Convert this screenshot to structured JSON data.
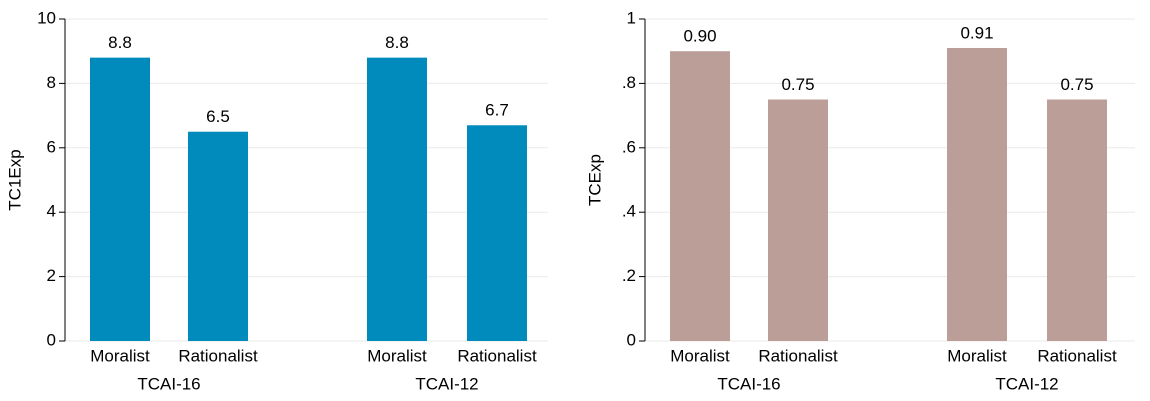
{
  "chart_data": [
    {
      "type": "bar",
      "y_label": "TC1Exp",
      "categories": [
        "Moralist",
        "Rationalist",
        "Moralist",
        "Rationalist"
      ],
      "groups": [
        "TCAI-16",
        "TCAI-12"
      ],
      "values": [
        8.8,
        6.5,
        8.8,
        6.7
      ],
      "color": "#008bbc",
      "ylim": [
        0,
        10
      ],
      "yticks": [
        0,
        2,
        4,
        6,
        8,
        10
      ],
      "grid": true
    },
    {
      "type": "bar",
      "y_label": "TCExp",
      "categories": [
        "Moralist",
        "Rationalist",
        "Moralist",
        "Rationalist"
      ],
      "groups": [
        "TCAI-16",
        "TCAI-12"
      ],
      "values": [
        0.9,
        0.75,
        0.91,
        0.75
      ],
      "value_labels": [
        "0.90",
        "0.75",
        "0.91",
        "0.75"
      ],
      "color": "#bc9e99",
      "ylim": [
        0,
        1
      ],
      "yticks": [
        0,
        {
          "value": 0.2,
          "label": ".2"
        },
        {
          "value": 0.4,
          "label": ".4"
        },
        {
          "value": 0.6,
          "label": ".6"
        },
        {
          "value": 0.8,
          "label": ".8"
        },
        1
      ],
      "grid": true
    }
  ]
}
